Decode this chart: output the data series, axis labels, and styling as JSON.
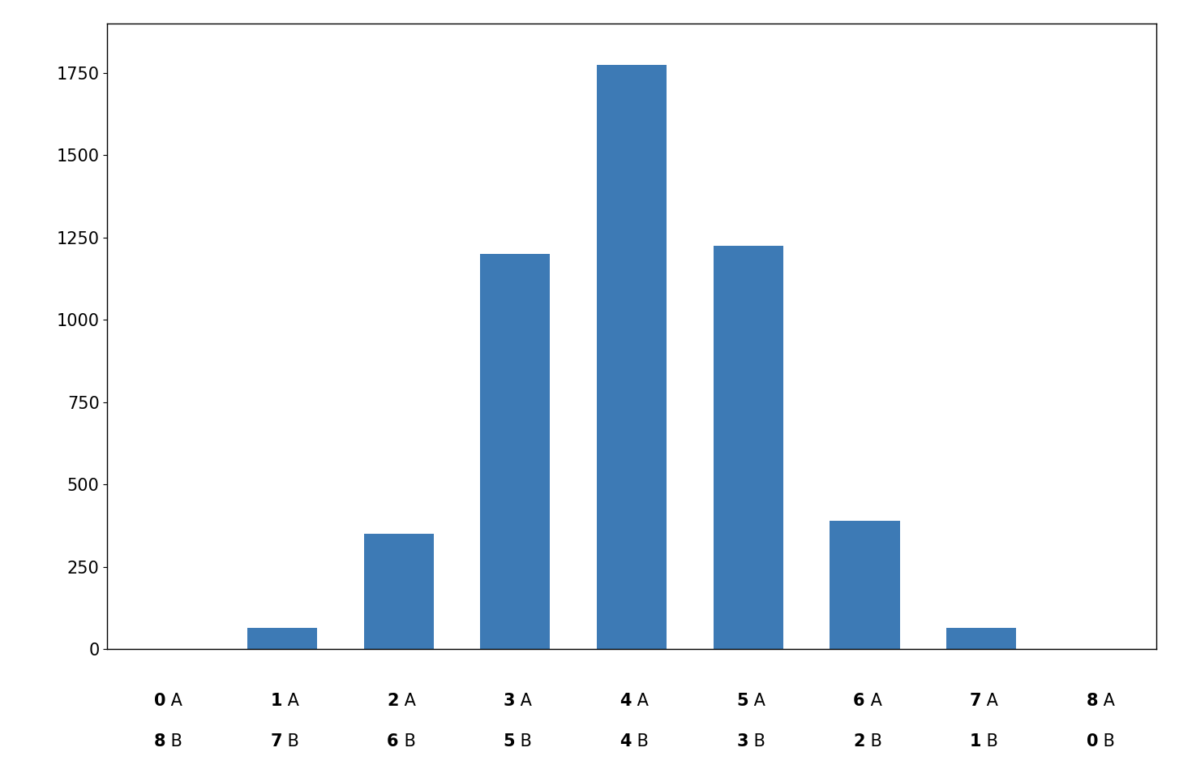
{
  "values": [
    0,
    65,
    350,
    1200,
    1775,
    1225,
    390,
    65,
    0
  ],
  "bar_color": "#3d7ab5",
  "background_color": "#ffffff",
  "ylim": [
    0,
    1900
  ],
  "yticks": [
    0,
    250,
    500,
    750,
    1000,
    1250,
    1500,
    1750
  ],
  "tick_numbers_top": [
    "0",
    "1",
    "2",
    "3",
    "4",
    "5",
    "6",
    "7",
    "8"
  ],
  "tick_numbers_bottom": [
    "8",
    "7",
    "6",
    "5",
    "4",
    "3",
    "2",
    "1",
    "0"
  ],
  "bar_width": 0.6,
  "figsize": [
    14.7,
    9.64
  ],
  "dpi": 100,
  "label_fontsize": 15,
  "ytick_fontsize": 15
}
